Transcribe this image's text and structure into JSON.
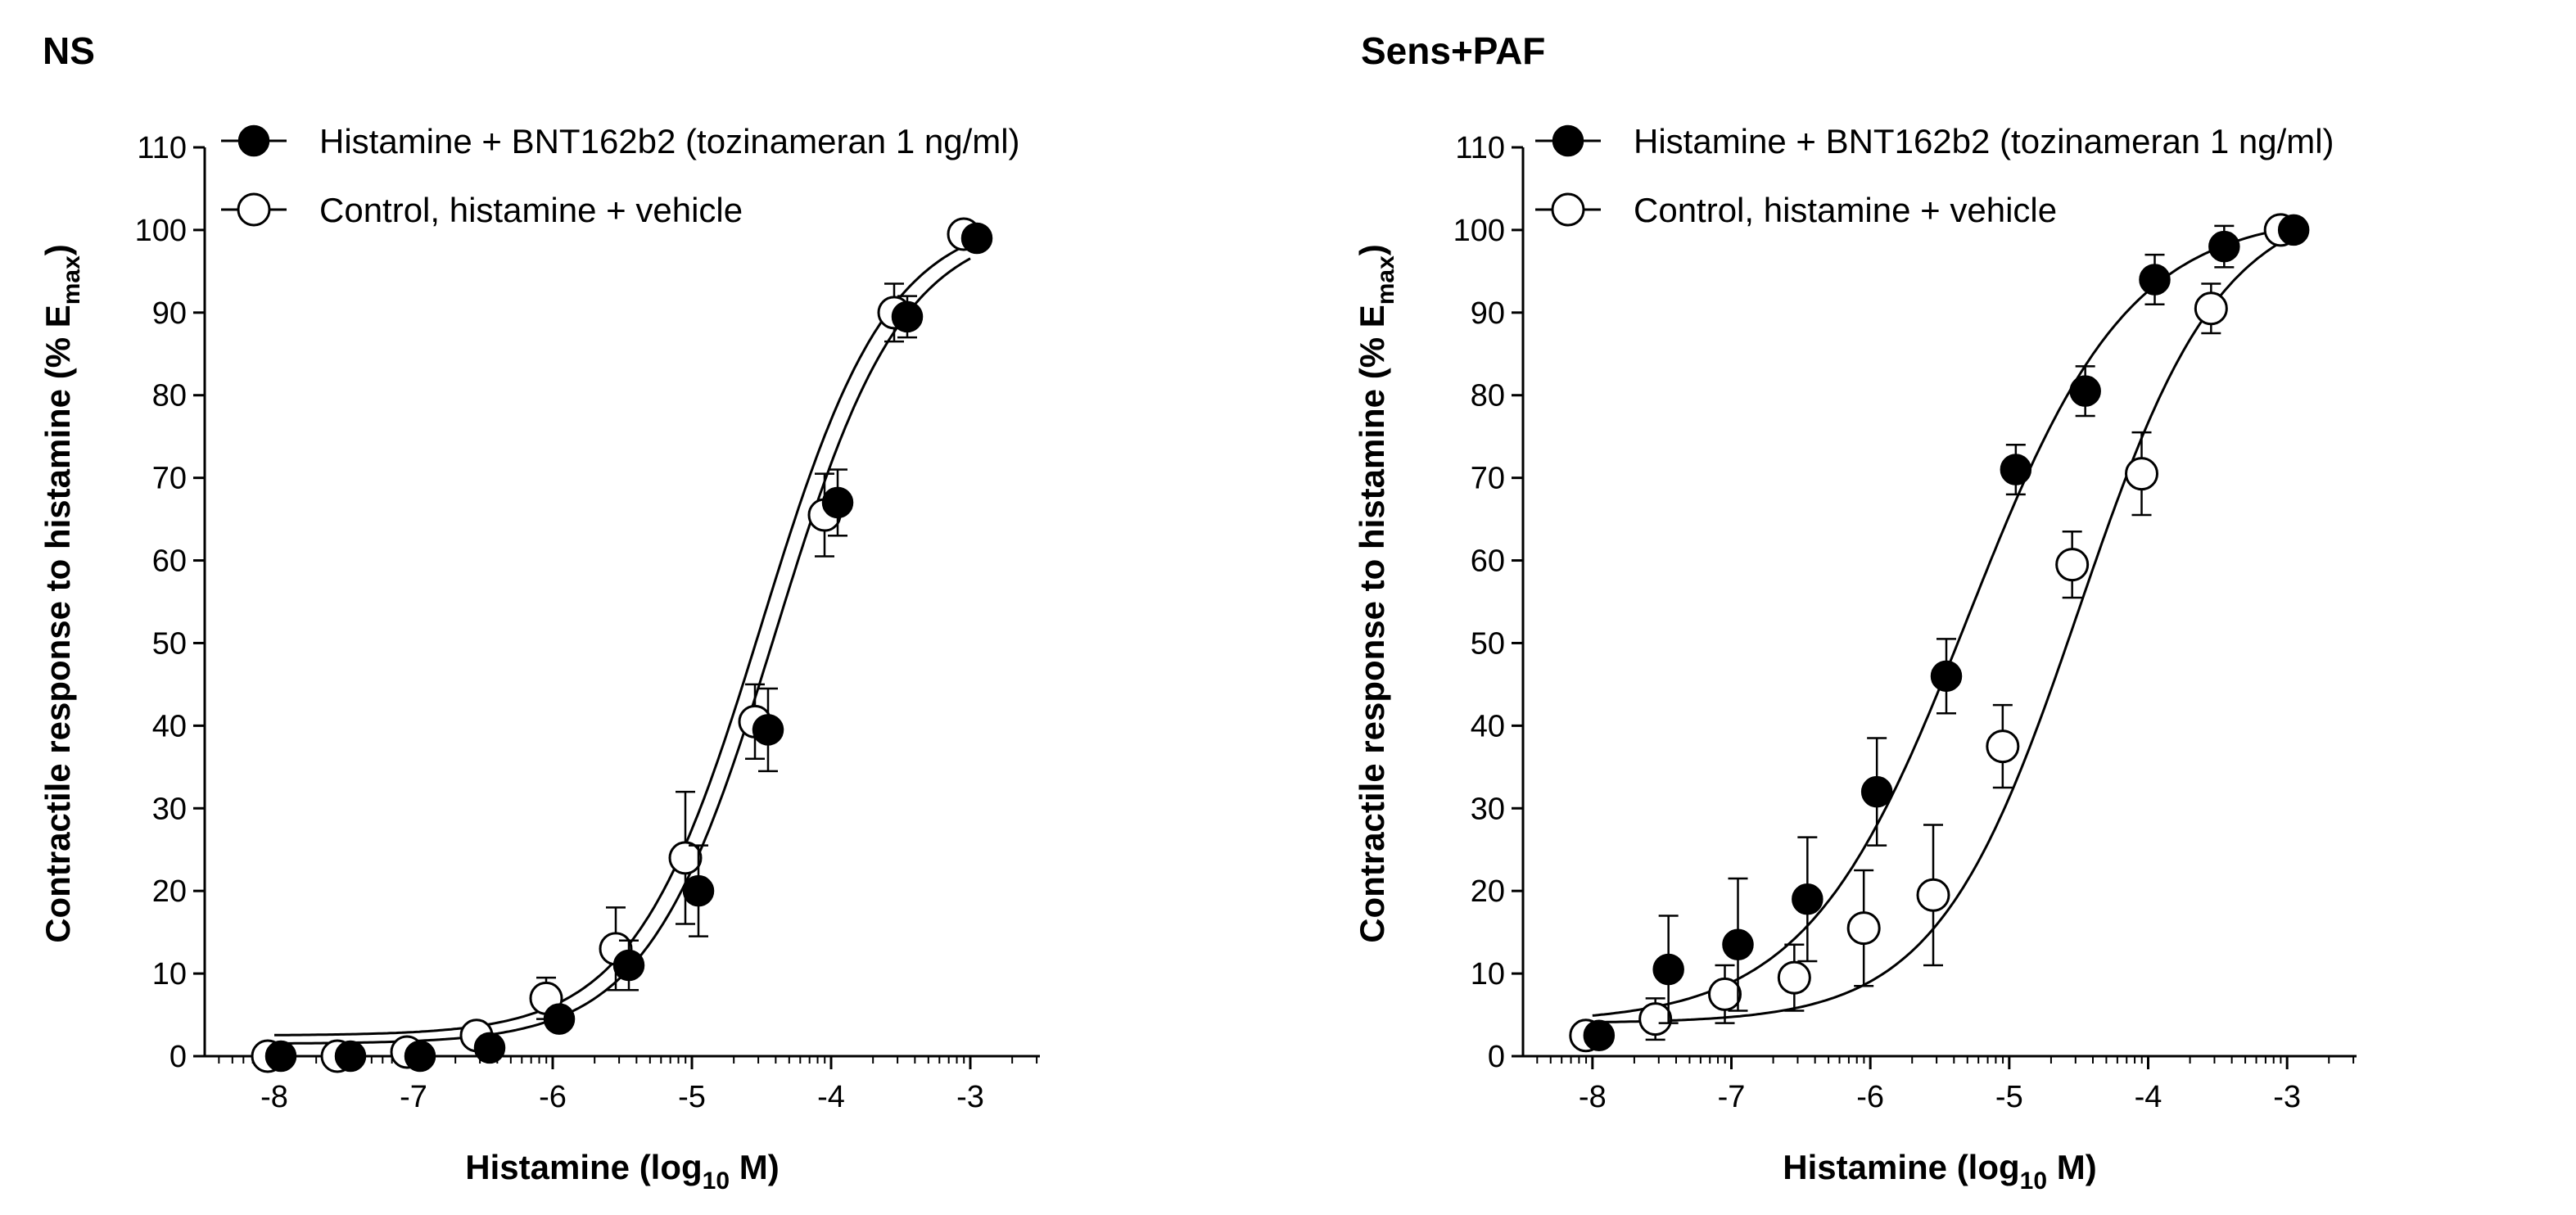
{
  "chart_data": [
    {
      "type": "scatter",
      "title": "NS",
      "xlabel_main": "Histamine (log",
      "xlabel_sub": "10",
      "xlabel_end": " M)",
      "ylabel_main": "Contractile response to histamine (% E",
      "ylabel_sub": "max",
      "ylabel_end": ")",
      "xlim": [
        -8.5,
        -2.5
      ],
      "ylim": [
        0,
        110
      ],
      "xticks": [
        -8,
        -7,
        -6,
        -5,
        -4,
        -3
      ],
      "xtick_labels": [
        "-8",
        "-7",
        "-6",
        "-5",
        "-4",
        "-3"
      ],
      "yticks": [
        0,
        10,
        20,
        30,
        40,
        50,
        60,
        70,
        80,
        90,
        100,
        110
      ],
      "ytick_labels": [
        "0",
        "10",
        "20",
        "30",
        "40",
        "50",
        "60",
        "70",
        "80",
        "90",
        "100",
        "110"
      ],
      "series": [
        {
          "name": "Histamine + BNT162b2 (tozinameran 1 ng/ml)",
          "marker": "filled",
          "x": [
            -8,
            -7.5,
            -7,
            -6.5,
            -6,
            -5.5,
            -5,
            -4.5,
            -4,
            -3.5,
            -3
          ],
          "y": [
            0,
            0,
            0,
            1,
            4.5,
            11,
            20,
            39.5,
            67,
            89.5,
            99
          ],
          "err": [
            0,
            0,
            0,
            0.5,
            1,
            3,
            5.5,
            5,
            4,
            2.5,
            1
          ],
          "fit": {
            "bottom": 1.5,
            "top": 101,
            "logEC50": -4.4,
            "hill": 0.95
          }
        },
        {
          "name": "Control, histamine + vehicle",
          "marker": "open",
          "x": [
            -8,
            -7.5,
            -7,
            -6.5,
            -6,
            -5.5,
            -5,
            -4.5,
            -4,
            -3.5,
            -3
          ],
          "y": [
            0,
            0,
            0.5,
            2.5,
            7,
            13,
            24,
            40.5,
            65.5,
            90,
            99.5
          ],
          "err": [
            0,
            0,
            0,
            0.5,
            2.5,
            5,
            8,
            4.5,
            5,
            3.5,
            0.5
          ],
          "fit": {
            "bottom": 2.5,
            "top": 102,
            "logEC50": -4.5,
            "hill": 0.95
          }
        }
      ]
    },
    {
      "type": "scatter",
      "title": "Sens+PAF",
      "xlabel_main": "Histamine (log",
      "xlabel_sub": "10",
      "xlabel_end": " M)",
      "ylabel_main": "Contractile response to histamine (% E",
      "ylabel_sub": "max",
      "ylabel_end": ")",
      "xlim": [
        -8.5,
        -2.5
      ],
      "ylim": [
        0,
        110
      ],
      "xticks": [
        -8,
        -7,
        -6,
        -5,
        -4,
        -3
      ],
      "xtick_labels": [
        "-8",
        "-7",
        "-6",
        "-5",
        "-4",
        "-3"
      ],
      "yticks": [
        0,
        10,
        20,
        30,
        40,
        50,
        60,
        70,
        80,
        90,
        100,
        110
      ],
      "ytick_labels": [
        "0",
        "10",
        "20",
        "30",
        "40",
        "50",
        "60",
        "70",
        "80",
        "90",
        "100",
        "110"
      ],
      "series": [
        {
          "name": "Histamine + BNT162b2 (tozinameran 1 ng/ml)",
          "marker": "filled",
          "x": [
            -8,
            -7.5,
            -7,
            -6.5,
            -6,
            -5.5,
            -5,
            -4.5,
            -4,
            -3.5,
            -3
          ],
          "y": [
            2.5,
            10.5,
            13.5,
            19,
            32,
            46,
            71,
            80.5,
            94,
            98,
            100
          ],
          "err": [
            1,
            6.5,
            8,
            7.5,
            6.5,
            4.5,
            3,
            3,
            3,
            2.5,
            0
          ],
          "fit": {
            "bottom": 4,
            "top": 102,
            "logEC50": -5.3,
            "hill": 0.75
          }
        },
        {
          "name": "Control, histamine + vehicle",
          "marker": "open",
          "x": [
            -8,
            -7.5,
            -7,
            -6.5,
            -6,
            -5.5,
            -5,
            -4.5,
            -4,
            -3.5,
            -3
          ],
          "y": [
            2.5,
            4.5,
            7.5,
            9.5,
            15.5,
            19.5,
            37.5,
            59.5,
            70.5,
            90.5,
            100
          ],
          "err": [
            0.5,
            2.5,
            3.5,
            4,
            7,
            8.5,
            5,
            4,
            5,
            3,
            0
          ],
          "fit": {
            "bottom": 4,
            "top": 104,
            "logEC50": -4.5,
            "hill": 0.85
          }
        }
      ]
    }
  ]
}
